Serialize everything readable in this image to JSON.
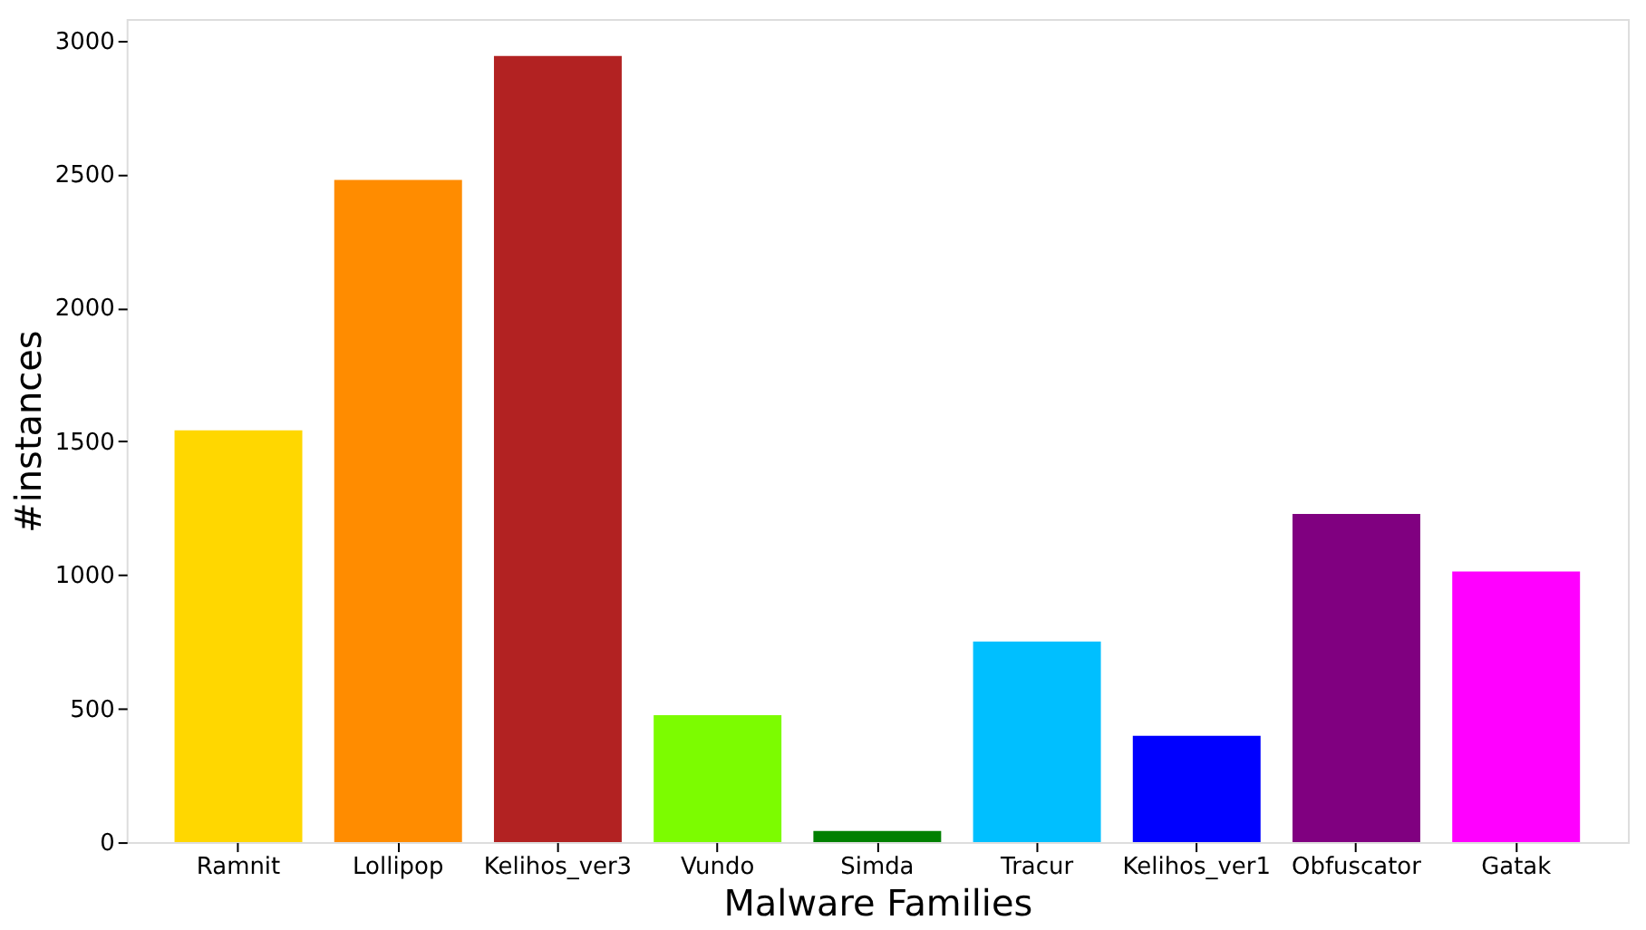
{
  "chart_data": {
    "type": "bar",
    "xlabel": "Malware Families",
    "ylabel": "#instances",
    "categories": [
      "Ramnit",
      "Lollipop",
      "Kelihos_ver3",
      "Vundo",
      "Simda",
      "Tracur",
      "Kelihos_ver1",
      "Obfuscator",
      "Gatak"
    ],
    "values": [
      1541,
      2478,
      2942,
      475,
      42,
      751,
      398,
      1228,
      1013
    ],
    "colors": [
      "#ffd700",
      "#ff8c00",
      "#b22222",
      "#7cfc00",
      "#008000",
      "#00bfff",
      "#0000ff",
      "#800080",
      "#ff00ff"
    ],
    "ylim": [
      0,
      3080
    ],
    "yticks": [
      0,
      500,
      1000,
      1500,
      2000,
      2500,
      3000
    ],
    "grid": false
  }
}
